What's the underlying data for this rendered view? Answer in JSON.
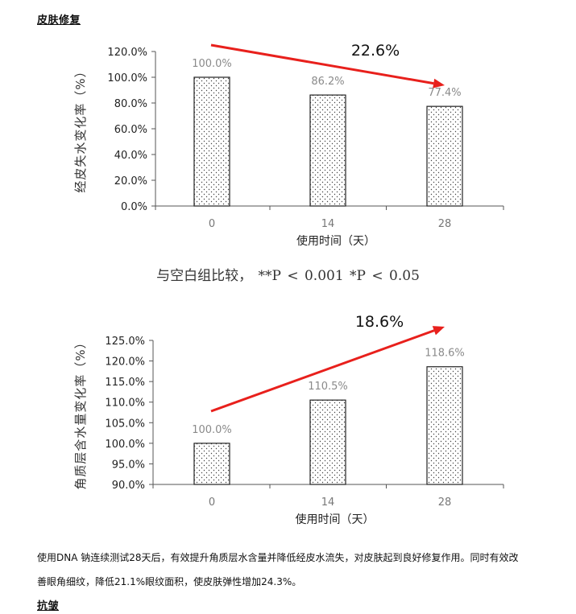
{
  "headings": {
    "repair": "皮肤修复",
    "antiwrinkle": "抗皱"
  },
  "significance_note": "与空白组比较，  **P < 0.001 *P < 0.05",
  "paragraph": {
    "line1": "使用DNA 钠连续测试28天后，有效提升角质层水含量并降低经皮水流失，对皮肤起到良好修复作用。同时有效改",
    "line2": "善眼角细纹，降低21.1%眼纹面积，使皮肤弹性增加24.3%。"
  },
  "colors": {
    "arrow": "#e8201c",
    "bar_edge": "#222222",
    "bar_dots": "#444444",
    "axis": "#555555",
    "label": "#8a8a8a"
  },
  "chart_data": [
    {
      "type": "bar",
      "categories": [
        "0",
        "14",
        "28"
      ],
      "values": [
        100.0,
        86.2,
        77.4
      ],
      "value_labels": [
        "100.0%",
        "86.2%",
        "77.4%"
      ],
      "xlabel": "使用时间（天）",
      "ylabel": "经皮失水变化率（%）",
      "ylim": [
        0,
        120
      ],
      "yticks": [
        0,
        20,
        40,
        60,
        80,
        100,
        120
      ],
      "ytick_labels": [
        "0.0%",
        "20.0%",
        "40.0%",
        "60.0%",
        "80.0%",
        "100.0%",
        "120.0%"
      ],
      "grid": false,
      "annotation": {
        "text": "22.6%",
        "trend": "down"
      }
    },
    {
      "type": "bar",
      "categories": [
        "0",
        "14",
        "28"
      ],
      "values": [
        100.0,
        110.5,
        118.6
      ],
      "value_labels": [
        "100.0%",
        "110.5%",
        "118.6%"
      ],
      "xlabel": "使用时间（天）",
      "ylabel": "角质层含水量变化率（%）",
      "ylim": [
        90,
        125
      ],
      "yticks": [
        90,
        95,
        100,
        105,
        110,
        115,
        120,
        125
      ],
      "ytick_labels": [
        "90.0%",
        "95.0%",
        "100.0%",
        "105.0%",
        "110.0%",
        "115.0%",
        "120.0%",
        "125.0%"
      ],
      "grid": false,
      "annotation": {
        "text": "18.6%",
        "trend": "up"
      }
    }
  ]
}
